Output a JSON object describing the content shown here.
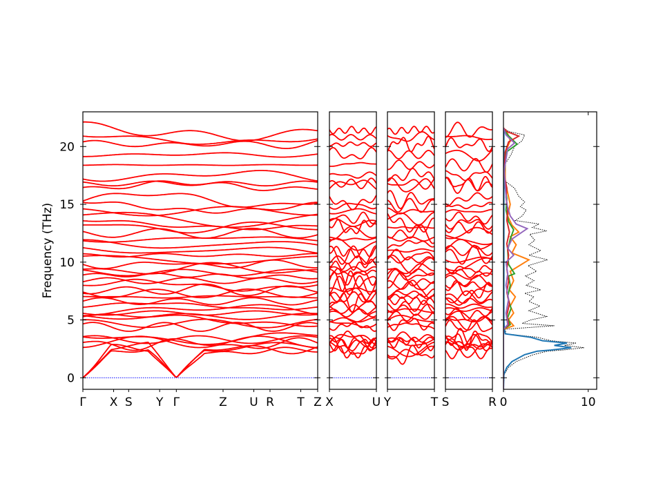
{
  "chart_data": {
    "type": "line",
    "title": "",
    "ylabel": "Frequency (THz)",
    "ylim": [
      -1,
      23
    ],
    "yticks": [
      0,
      5,
      10,
      15,
      20
    ],
    "band_color": "#ff0000",
    "zero_line_color": "#0000ff",
    "panels": [
      {
        "name": "main-path",
        "kpoint_labels": [
          "Γ",
          "X",
          "S",
          "Y",
          "Γ",
          "Z",
          "U",
          "R",
          "T",
          "Z"
        ],
        "kpoint_positions": [
          0,
          0.131,
          0.195,
          0.327,
          0.398,
          0.597,
          0.728,
          0.797,
          0.928,
          1.0
        ]
      },
      {
        "name": "x-u-path",
        "kpoint_labels": [
          "X",
          "U"
        ],
        "kpoint_positions": [
          0,
          1
        ]
      },
      {
        "name": "y-t-path",
        "kpoint_labels": [
          "Y",
          "T"
        ],
        "kpoint_positions": [
          0,
          1
        ]
      },
      {
        "name": "s-r-path",
        "kpoint_labels": [
          "S",
          "R"
        ],
        "kpoint_positions": [
          0,
          1
        ]
      }
    ],
    "dos": {
      "xlim": [
        0,
        11
      ],
      "xticks": [
        0,
        10
      ],
      "series": [
        {
          "color": "#000000",
          "style": "dotted",
          "points": [
            [
              0,
              -1
            ],
            [
              0.1,
              0.3
            ],
            [
              0.6,
              0.9
            ],
            [
              1.5,
              1.4
            ],
            [
              3.5,
              2.0
            ],
            [
              5.2,
              2.3
            ],
            [
              7.0,
              2.4
            ],
            [
              9.5,
              2.6
            ],
            [
              7.2,
              2.8
            ],
            [
              8.6,
              3.0
            ],
            [
              5.6,
              3.2
            ],
            [
              4.0,
              3.5
            ],
            [
              0.3,
              3.8
            ],
            [
              0.2,
              4.2
            ],
            [
              6.0,
              4.5
            ],
            [
              2.2,
              4.7
            ],
            [
              3.2,
              5.0
            ],
            [
              5.1,
              5.3
            ],
            [
              3.0,
              5.8
            ],
            [
              4.3,
              6.2
            ],
            [
              3.0,
              6.6
            ],
            [
              3.6,
              7.0
            ],
            [
              2.5,
              7.3
            ],
            [
              4.4,
              7.6
            ],
            [
              2.7,
              8.0
            ],
            [
              3.6,
              8.4
            ],
            [
              2.6,
              8.8
            ],
            [
              3.9,
              9.2
            ],
            [
              2.9,
              9.7
            ],
            [
              5.2,
              10.2
            ],
            [
              3.0,
              10.6
            ],
            [
              4.4,
              11.0
            ],
            [
              3.0,
              11.5
            ],
            [
              3.7,
              11.9
            ],
            [
              3.1,
              12.4
            ],
            [
              5.1,
              12.7
            ],
            [
              3.4,
              13.0
            ],
            [
              4.2,
              13.3
            ],
            [
              1.4,
              13.6
            ],
            [
              2.2,
              14.0
            ],
            [
              2.7,
              14.5
            ],
            [
              2.0,
              14.8
            ],
            [
              2.5,
              15.2
            ],
            [
              1.8,
              15.7
            ],
            [
              1.3,
              16.4
            ],
            [
              0.2,
              17.0
            ],
            [
              0.2,
              18.5
            ],
            [
              0.9,
              19.3
            ],
            [
              1.3,
              20.0
            ],
            [
              2.2,
              20.5
            ],
            [
              2.5,
              21.0
            ],
            [
              0.6,
              21.3
            ],
            [
              0,
              21.6
            ]
          ]
        },
        {
          "color": "#1f77b4",
          "style": "solid",
          "points": [
            [
              0,
              -1
            ],
            [
              0.05,
              0.3
            ],
            [
              0.4,
              0.9
            ],
            [
              1.0,
              1.4
            ],
            [
              2.5,
              2.0
            ],
            [
              4.0,
              2.3
            ],
            [
              5.6,
              2.4
            ],
            [
              8.0,
              2.6
            ],
            [
              6.0,
              2.8
            ],
            [
              7.5,
              3.0
            ],
            [
              4.6,
              3.2
            ],
            [
              3.2,
              3.5
            ],
            [
              0.2,
              3.8
            ],
            [
              0.1,
              4.2
            ],
            [
              0.05,
              5.0
            ],
            [
              0.05,
              21.6
            ]
          ]
        },
        {
          "color": "#ff7f0e",
          "style": "solid",
          "points": [
            [
              0,
              -1
            ],
            [
              0,
              4.2
            ],
            [
              1.2,
              4.5
            ],
            [
              0.6,
              5.0
            ],
            [
              1.2,
              5.6
            ],
            [
              0.8,
              6.2
            ],
            [
              1.4,
              7.0
            ],
            [
              0.7,
              7.6
            ],
            [
              1.2,
              8.4
            ],
            [
              0.8,
              9.2
            ],
            [
              3.0,
              10.2
            ],
            [
              1.0,
              10.8
            ],
            [
              1.5,
              11.5
            ],
            [
              0.8,
              12.2
            ],
            [
              1.8,
              12.6
            ],
            [
              1.0,
              13.2
            ],
            [
              0.5,
              14.0
            ],
            [
              0.8,
              15.0
            ],
            [
              0.5,
              16.0
            ],
            [
              0.2,
              17.0
            ],
            [
              0.2,
              19.5
            ],
            [
              0.8,
              20.5
            ],
            [
              0.4,
              21.3
            ],
            [
              0,
              21.6
            ]
          ]
        },
        {
          "color": "#2ca02c",
          "style": "solid",
          "points": [
            [
              0,
              -1
            ],
            [
              0,
              4.2
            ],
            [
              0.8,
              4.6
            ],
            [
              0.5,
              5.2
            ],
            [
              0.9,
              6.0
            ],
            [
              0.5,
              7.0
            ],
            [
              0.8,
              8.0
            ],
            [
              0.6,
              8.8
            ],
            [
              1.3,
              9.0
            ],
            [
              0.6,
              9.8
            ],
            [
              0.5,
              11.0
            ],
            [
              0.8,
              12.0
            ],
            [
              1.2,
              12.8
            ],
            [
              0.6,
              13.5
            ],
            [
              0.3,
              14.5
            ],
            [
              0.4,
              15.5
            ],
            [
              0.2,
              16.5
            ],
            [
              0.1,
              17.5
            ],
            [
              0.3,
              19.5
            ],
            [
              1.6,
              20.2
            ],
            [
              0.5,
              21.0
            ],
            [
              0,
              21.6
            ]
          ]
        },
        {
          "color": "#d62728",
          "style": "solid",
          "points": [
            [
              0,
              -1
            ],
            [
              0,
              4.2
            ],
            [
              0.6,
              4.6
            ],
            [
              0.4,
              5.4
            ],
            [
              0.7,
              6.4
            ],
            [
              0.4,
              7.4
            ],
            [
              0.6,
              8.4
            ],
            [
              0.4,
              9.4
            ],
            [
              0.6,
              10.6
            ],
            [
              0.4,
              11.6
            ],
            [
              0.7,
              12.6
            ],
            [
              0.4,
              13.6
            ],
            [
              0.5,
              14.6
            ],
            [
              0.3,
              15.6
            ],
            [
              0.4,
              16.4
            ],
            [
              0.1,
              17.5
            ],
            [
              0.2,
              19.5
            ],
            [
              0.6,
              20.4
            ],
            [
              1.8,
              20.9
            ],
            [
              0.4,
              21.3
            ],
            [
              0,
              21.6
            ]
          ]
        },
        {
          "color": "#9467bd",
          "style": "solid",
          "points": [
            [
              0,
              -1
            ],
            [
              0,
              4.2
            ],
            [
              0.5,
              4.6
            ],
            [
              0.3,
              5.6
            ],
            [
              0.6,
              6.8
            ],
            [
              0.3,
              8.0
            ],
            [
              0.5,
              9.0
            ],
            [
              0.3,
              10.0
            ],
            [
              1.2,
              10.6
            ],
            [
              0.5,
              11.2
            ],
            [
              1.0,
              12.0
            ],
            [
              2.8,
              12.9
            ],
            [
              1.5,
              13.3
            ],
            [
              0.8,
              14.0
            ],
            [
              0.4,
              15.0
            ],
            [
              0.2,
              16.5
            ],
            [
              0.1,
              18.0
            ],
            [
              0.5,
              19.8
            ],
            [
              1.3,
              20.3
            ],
            [
              0.3,
              21.0
            ],
            [
              0,
              21.6
            ]
          ]
        }
      ]
    }
  }
}
